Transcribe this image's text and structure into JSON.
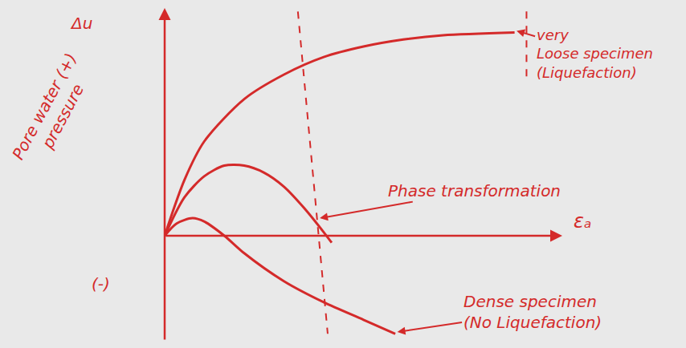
{
  "chart_data": {
    "type": "line",
    "color": "#d42a2a",
    "xlim": [
      0,
      10
    ],
    "ylim": [
      -3,
      6.5
    ],
    "tick_labels": false,
    "grid": false,
    "x_label": "εₐ",
    "y_label": [
      "Pore water (+)",
      "pressure"
    ],
    "y_symbol": "Δu",
    "negative_label": "(-)",
    "line_style": "solid",
    "series": [
      {
        "x": [
          0,
          0.5,
          1,
          2,
          3,
          4,
          5,
          6,
          7,
          8.8
        ],
        "values": [
          0,
          1.6,
          2.7,
          3.9,
          4.6,
          5.1,
          5.4,
          5.6,
          5.72,
          5.8
        ]
      },
      {
        "x": [
          0,
          0.5,
          1,
          1.5,
          2,
          2.5,
          3,
          3.5,
          4,
          4.2
        ],
        "values": [
          0,
          1.1,
          1.7,
          2.0,
          2.0,
          1.8,
          1.4,
          0.8,
          0.1,
          -0.2
        ]
      },
      {
        "x": [
          0,
          0.3,
          0.7,
          1,
          1.5,
          2,
          3,
          4,
          5,
          5.8
        ],
        "values": [
          0,
          0.35,
          0.5,
          0.4,
          0,
          -0.5,
          -1.3,
          -1.9,
          -2.4,
          -2.8
        ]
      }
    ],
    "reference_lines": [
      {
        "x": [
          3.35,
          4.1
        ],
        "values": [
          6.4,
          -2.8
        ],
        "line_style": "dash"
      },
      {
        "x": [
          9.1,
          9.1
        ],
        "values": [
          6.4,
          4.4
        ],
        "line_style": "dash"
      }
    ],
    "annotations": [
      {
        "text": [
          "very",
          "Loose specimen",
          "(Liquefaction)"
        ],
        "x": 8.85,
        "y": 5.85
      },
      {
        "text": [
          "Phase transformation"
        ],
        "x": 3.9,
        "y": 0.5
      },
      {
        "text": [
          "Dense specimen",
          "(No Liquefaction)"
        ],
        "x": 5.85,
        "y": -2.75
      }
    ]
  }
}
